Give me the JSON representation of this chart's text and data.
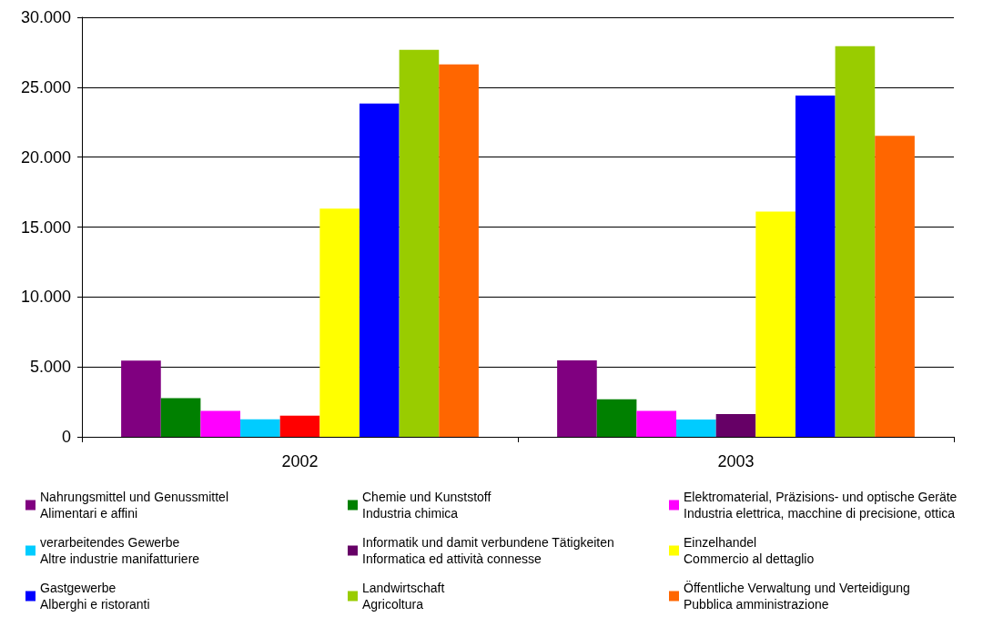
{
  "chart_data": {
    "type": "bar",
    "categories": [
      "2002",
      "2003"
    ],
    "ylim": [
      0,
      30000
    ],
    "yticks": [
      {
        "value": 0,
        "label": "0"
      },
      {
        "value": 5000,
        "label": "5.000"
      },
      {
        "value": 10000,
        "label": "10.000"
      },
      {
        "value": 15000,
        "label": "15.000"
      },
      {
        "value": 20000,
        "label": "20.000"
      },
      {
        "value": 25000,
        "label": "25.000"
      },
      {
        "value": 30000,
        "label": "30.000"
      }
    ],
    "grid": "y",
    "legend": "bottom",
    "series": [
      {
        "name": "Nahrungsmittel und Genussmittel\nAlimentari e affini",
        "color": "#800080",
        "values": [
          5450,
          5460
        ]
      },
      {
        "name": "Chemie und Kunststoff\nIndustria chimica",
        "color": "#008000",
        "values": [
          2770,
          2680
        ]
      },
      {
        "name": "Elektromaterial, Präzisions- und optische Geräte\nIndustria elettrica, macchine di precisione, ottica",
        "color": "#ff00ff",
        "values": [
          1850,
          1850
        ]
      },
      {
        "name": "verarbeitendes Gewerbe\nAltre industrie manifatturiere",
        "color": "#00ccff",
        "values": [
          1260,
          1240
        ]
      },
      {
        "name": "Informatik und damit verbundene Tätigkeiten\nInformatica ed attività connesse",
        "color": "#660066",
        "colors": [
          "#ff0000",
          "#660066"
        ],
        "values": [
          1520,
          1620
        ]
      },
      {
        "name": "Einzelhandel\nCommercio al dettaglio",
        "color": "#ffff00",
        "values": [
          16320,
          16110
        ]
      },
      {
        "name": "Gastgewerbe\nAlberghi e ristoranti",
        "color": "#0000ff",
        "values": [
          23830,
          24400
        ]
      },
      {
        "name": "Landwirtschaft\nAgricoltura",
        "color": "#99cc00",
        "values": [
          27670,
          27930
        ]
      },
      {
        "name": "Öffentliche Verwaltung und Verteidigung\nPubblica amministrazione",
        "color": "#ff6600",
        "values": [
          26630,
          21530
        ]
      }
    ]
  }
}
